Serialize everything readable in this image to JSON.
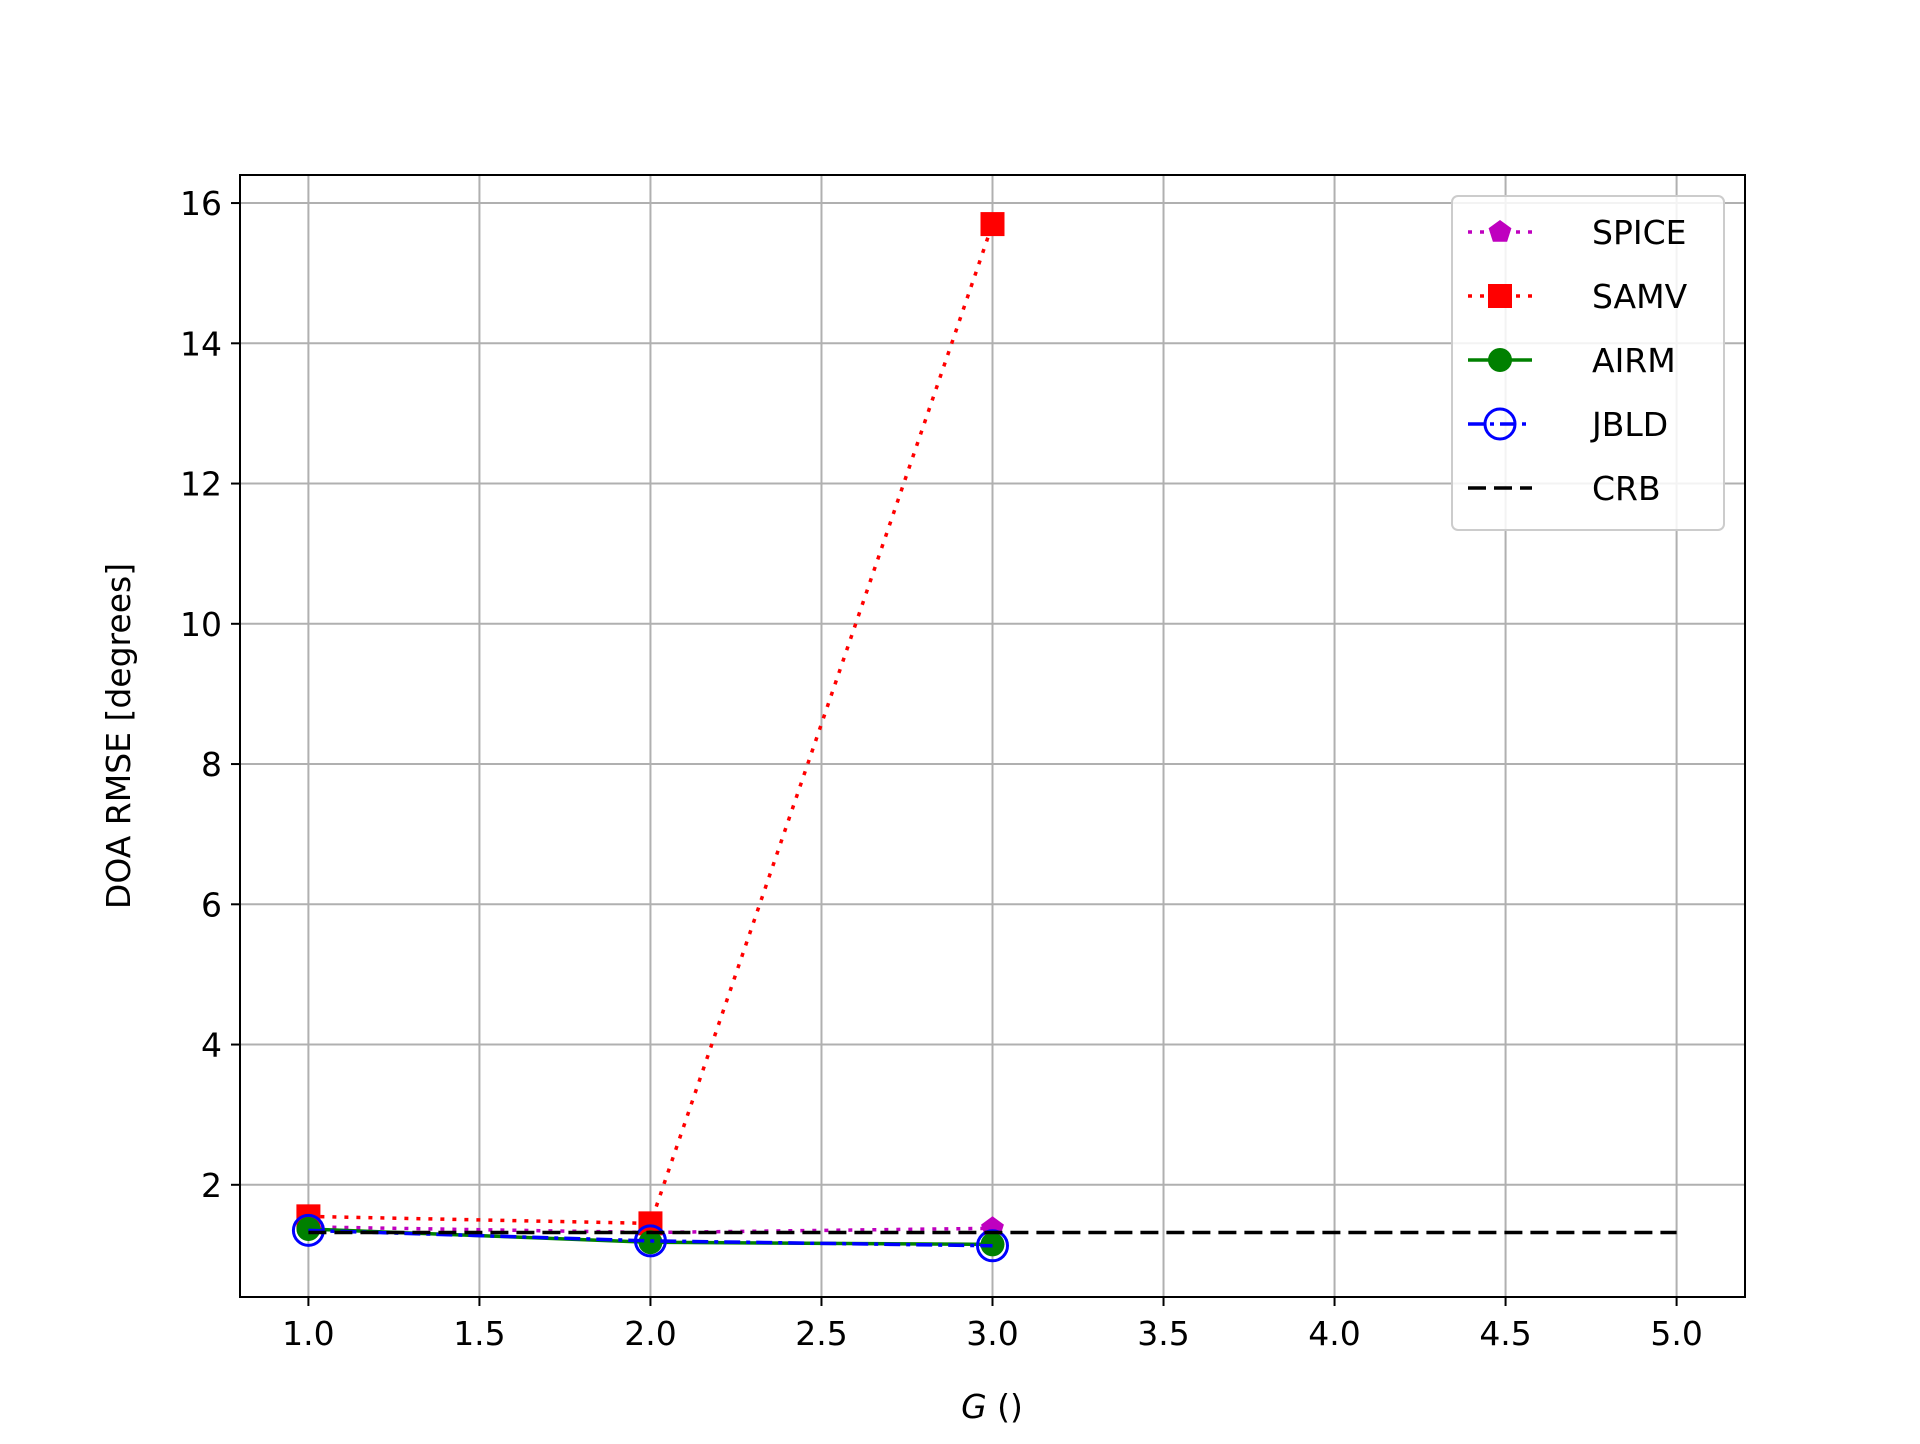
{
  "chart_data": {
    "type": "line",
    "title": "",
    "xlabel_var": "G",
    "xlabel_unit": " ()",
    "ylabel": "DOA RMSE [degrees]",
    "xlim": [
      0.8,
      5.2
    ],
    "ylim": [
      0.4,
      16.4
    ],
    "xticks": [
      1.0,
      1.5,
      2.0,
      2.5,
      3.0,
      3.5,
      4.0,
      4.5,
      5.0
    ],
    "xtick_labels": [
      "1.0",
      "1.5",
      "2.0",
      "2.5",
      "3.0",
      "3.5",
      "4.0",
      "4.5",
      "5.0"
    ],
    "yticks": [
      2,
      4,
      6,
      8,
      10,
      12,
      14,
      16
    ],
    "ytick_labels": [
      "2",
      "4",
      "6",
      "8",
      "10",
      "12",
      "14",
      "16"
    ],
    "grid": true,
    "legend_position": "top-right",
    "series": [
      {
        "name": "SPICE",
        "x": [
          1,
          2,
          3
        ],
        "values": [
          1.4,
          1.32,
          1.38
        ],
        "color": "#bf00bf",
        "linestyle": "dotted",
        "marker": "pentagon"
      },
      {
        "name": "SAMV",
        "x": [
          1,
          2,
          3
        ],
        "values": [
          1.55,
          1.45,
          15.7
        ],
        "color": "#ff0000",
        "linestyle": "dotted",
        "marker": "square"
      },
      {
        "name": "AIRM",
        "x": [
          1,
          2,
          3
        ],
        "values": [
          1.37,
          1.18,
          1.15
        ],
        "color": "#008000",
        "linestyle": "solid",
        "marker": "circle"
      },
      {
        "name": "JBLD",
        "x": [
          1,
          2,
          3
        ],
        "values": [
          1.35,
          1.2,
          1.13
        ],
        "color": "#0000ff",
        "linestyle": "dashdot",
        "marker": "open-circle"
      },
      {
        "name": "CRB",
        "x": [
          1,
          2,
          3,
          4,
          5
        ],
        "values": [
          1.32,
          1.32,
          1.32,
          1.32,
          1.32
        ],
        "color": "#000000",
        "linestyle": "dashed",
        "marker": "none"
      }
    ]
  }
}
